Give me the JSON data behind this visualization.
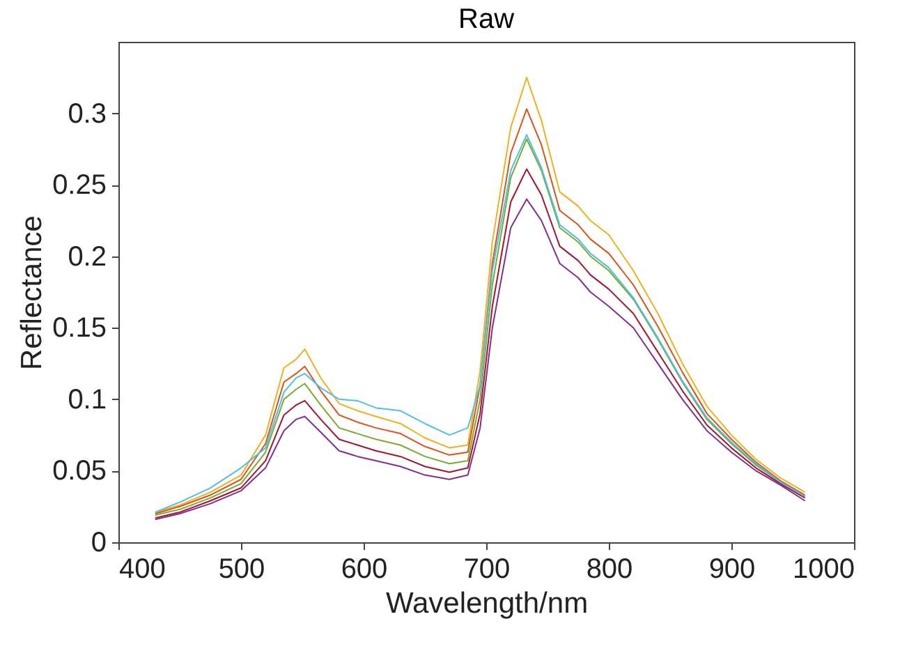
{
  "chart_data": {
    "type": "line",
    "title": "Raw",
    "xlabel": "Wavelength/nm",
    "ylabel": "Reflectance",
    "x": [
      430,
      450,
      475,
      500,
      520,
      535,
      545,
      552,
      565,
      580,
      595,
      610,
      630,
      650,
      670,
      685,
      695,
      705,
      720,
      733,
      745,
      760,
      775,
      785,
      800,
      820,
      840,
      860,
      880,
      900,
      920,
      940,
      960
    ],
    "series": [
      {
        "color": "#edb120",
        "values": [
          0.021,
          0.026,
          0.035,
          0.047,
          0.075,
          0.122,
          0.128,
          0.135,
          0.115,
          0.097,
          0.092,
          0.088,
          0.083,
          0.073,
          0.066,
          0.068,
          0.12,
          0.21,
          0.29,
          0.325,
          0.295,
          0.245,
          0.235,
          0.225,
          0.215,
          0.19,
          0.16,
          0.125,
          0.095,
          0.075,
          0.058,
          0.045,
          0.035
        ]
      },
      {
        "color": "#d95319",
        "values": [
          0.02,
          0.025,
          0.033,
          0.044,
          0.069,
          0.112,
          0.118,
          0.123,
          0.106,
          0.089,
          0.084,
          0.08,
          0.076,
          0.067,
          0.061,
          0.063,
          0.11,
          0.195,
          0.272,
          0.303,
          0.278,
          0.232,
          0.222,
          0.212,
          0.202,
          0.18,
          0.151,
          0.119,
          0.09,
          0.072,
          0.056,
          0.043,
          0.033
        ]
      },
      {
        "color": "#77ac30",
        "values": [
          0.019,
          0.023,
          0.031,
          0.041,
          0.063,
          0.1,
          0.107,
          0.111,
          0.096,
          0.08,
          0.076,
          0.072,
          0.068,
          0.06,
          0.055,
          0.057,
          0.1,
          0.18,
          0.255,
          0.282,
          0.26,
          0.22,
          0.21,
          0.2,
          0.19,
          0.17,
          0.142,
          0.112,
          0.086,
          0.069,
          0.054,
          0.042,
          0.032
        ]
      },
      {
        "color": "#a2142f",
        "values": [
          0.017,
          0.021,
          0.029,
          0.038,
          0.057,
          0.089,
          0.096,
          0.099,
          0.086,
          0.072,
          0.068,
          0.064,
          0.06,
          0.053,
          0.049,
          0.052,
          0.09,
          0.165,
          0.238,
          0.261,
          0.243,
          0.207,
          0.197,
          0.187,
          0.177,
          0.16,
          0.133,
          0.106,
          0.082,
          0.066,
          0.052,
          0.041,
          0.031
        ]
      },
      {
        "color": "#7e2f8e",
        "values": [
          0.016,
          0.02,
          0.027,
          0.036,
          0.052,
          0.078,
          0.086,
          0.088,
          0.077,
          0.064,
          0.06,
          0.057,
          0.053,
          0.047,
          0.044,
          0.047,
          0.08,
          0.15,
          0.22,
          0.24,
          0.225,
          0.195,
          0.185,
          0.175,
          0.165,
          0.15,
          0.125,
          0.1,
          0.078,
          0.063,
          0.05,
          0.04,
          0.029
        ]
      },
      {
        "color": "#4dbeee",
        "values": [
          0.021,
          0.028,
          0.038,
          0.052,
          0.066,
          0.105,
          0.115,
          0.118,
          0.108,
          0.1,
          0.099,
          0.094,
          0.092,
          0.083,
          0.075,
          0.08,
          0.11,
          0.19,
          0.26,
          0.285,
          0.262,
          0.222,
          0.212,
          0.202,
          0.192,
          0.171,
          0.143,
          0.113,
          0.087,
          0.07,
          0.055,
          0.042,
          0.032
        ]
      }
    ],
    "xlim": [
      400,
      1000
    ],
    "xticks": [
      400,
      500,
      600,
      700,
      800,
      900,
      1000
    ],
    "ylim": [
      0,
      0.35
    ],
    "yticks": [
      0,
      0.05,
      0.1,
      0.15,
      0.2,
      0.25,
      0.3
    ],
    "grid": false,
    "legend": false,
    "marker": "none",
    "line_style": "solid"
  }
}
